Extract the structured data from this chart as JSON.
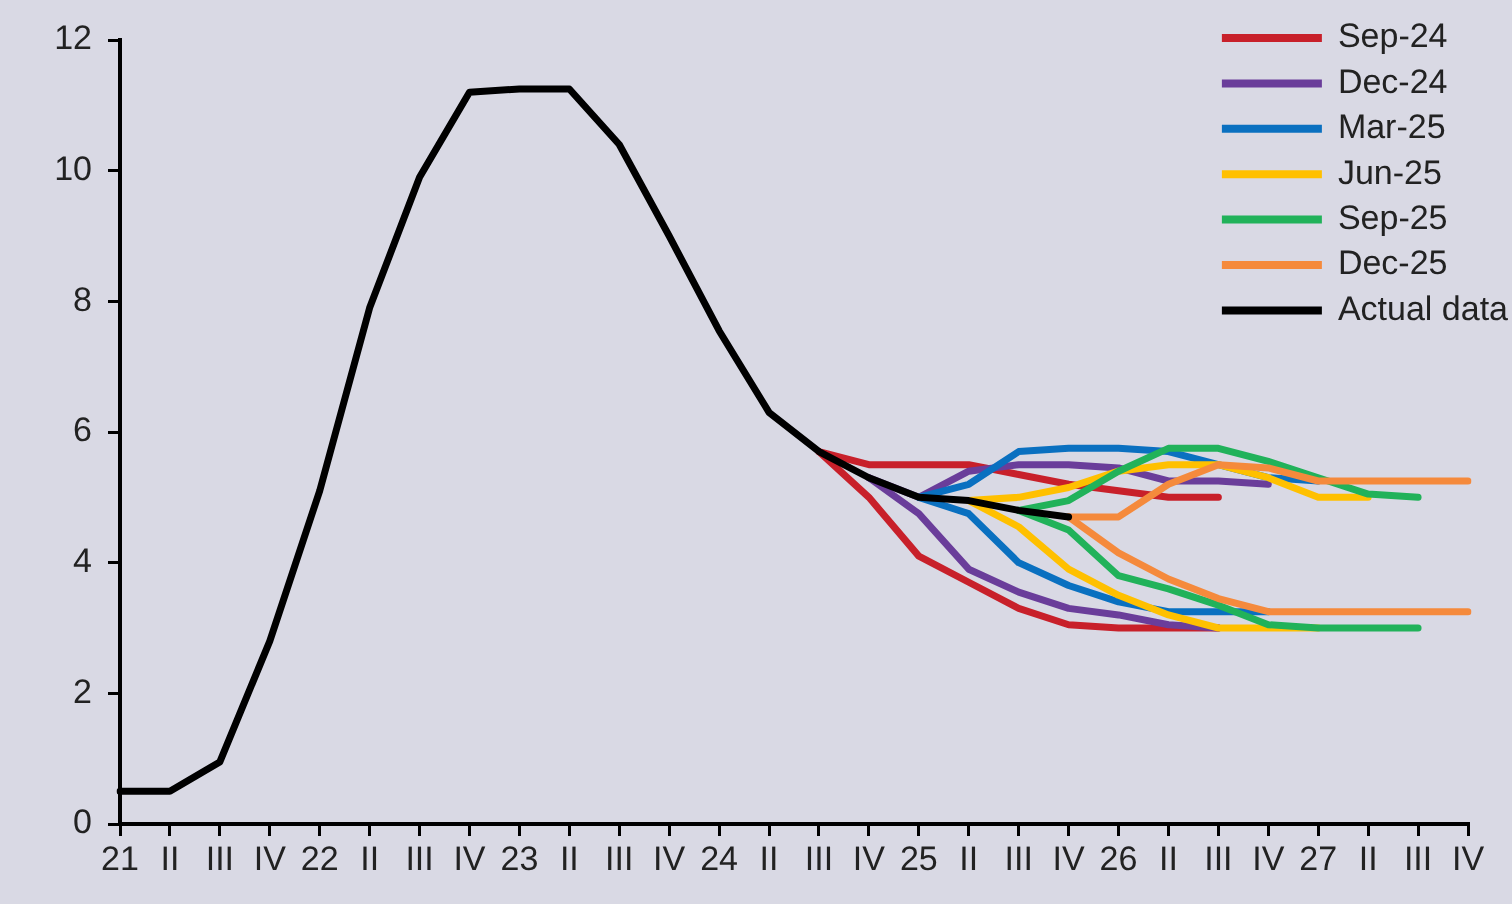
{
  "chart_data": {
    "type": "line",
    "legend": "top right",
    "categories": [
      "21",
      "II",
      "III",
      "IV",
      "22",
      "II",
      "III",
      "IV",
      "23",
      "II",
      "III",
      "IV",
      "24",
      "II",
      "III",
      "IV",
      "25",
      "II",
      "III",
      "IV",
      "26",
      "II",
      "III",
      "IV",
      "27",
      "II",
      "III",
      "IV"
    ],
    "ylim": [
      0,
      12
    ],
    "yticks": [
      0,
      2,
      4,
      6,
      8,
      10,
      12
    ],
    "series": [
      {
        "name": "Sep-24",
        "color": "#c8202a",
        "values": [
          null,
          null,
          null,
          null,
          null,
          null,
          null,
          null,
          null,
          null,
          null,
          null,
          null,
          null,
          5.7,
          5.5,
          5.5,
          5.5,
          5.35,
          5.2,
          5.1,
          5.0,
          5.0,
          null,
          null,
          null,
          null,
          null
        ]
      },
      {
        "color": "#c8202a",
        "values": [
          null,
          null,
          null,
          null,
          null,
          null,
          null,
          null,
          null,
          null,
          null,
          null,
          null,
          null,
          5.7,
          5.0,
          4.1,
          3.7,
          3.3,
          3.05,
          3.0,
          3.0,
          3.0,
          null,
          null,
          null,
          null,
          null
        ]
      },
      {
        "name": "Dec-24",
        "color": "#6a3d9a",
        "values": [
          null,
          null,
          null,
          null,
          null,
          null,
          null,
          null,
          null,
          null,
          null,
          null,
          null,
          null,
          null,
          5.3,
          5.0,
          5.4,
          5.5,
          5.5,
          5.45,
          5.25,
          5.25,
          5.2,
          null,
          null,
          null,
          null
        ]
      },
      {
        "color": "#6a3d9a",
        "values": [
          null,
          null,
          null,
          null,
          null,
          null,
          null,
          null,
          null,
          null,
          null,
          null,
          null,
          null,
          null,
          5.3,
          4.75,
          3.9,
          3.55,
          3.3,
          3.2,
          3.05,
          3.0,
          null,
          null,
          null,
          null,
          null
        ]
      },
      {
        "name": "Mar-25",
        "color": "#0a70c0",
        "values": [
          null,
          null,
          null,
          null,
          null,
          null,
          null,
          null,
          null,
          null,
          null,
          null,
          null,
          null,
          null,
          null,
          5.0,
          5.2,
          5.7,
          5.75,
          5.75,
          5.7,
          5.5,
          5.3,
          5.25,
          null,
          null,
          null
        ]
      },
      {
        "color": "#0a70c0",
        "values": [
          null,
          null,
          null,
          null,
          null,
          null,
          null,
          null,
          null,
          null,
          null,
          null,
          null,
          null,
          null,
          null,
          5.0,
          4.75,
          4.0,
          3.65,
          3.4,
          3.25,
          3.25,
          3.25,
          null,
          null,
          null,
          null
        ]
      },
      {
        "name": "Jun-25",
        "color": "#ffc000",
        "values": [
          null,
          null,
          null,
          null,
          null,
          null,
          null,
          null,
          null,
          null,
          null,
          null,
          null,
          null,
          null,
          null,
          null,
          4.95,
          5.0,
          5.15,
          5.4,
          5.5,
          5.5,
          5.3,
          5.0,
          5.0,
          null,
          null
        ]
      },
      {
        "color": "#ffc000",
        "values": [
          null,
          null,
          null,
          null,
          null,
          null,
          null,
          null,
          null,
          null,
          null,
          null,
          null,
          null,
          null,
          null,
          null,
          4.95,
          4.55,
          3.9,
          3.5,
          3.2,
          3.0,
          3.0,
          3.0,
          null,
          null,
          null
        ]
      },
      {
        "name": "Sep-25",
        "color": "#21b25a",
        "values": [
          null,
          null,
          null,
          null,
          null,
          null,
          null,
          null,
          null,
          null,
          null,
          null,
          null,
          null,
          null,
          null,
          null,
          null,
          4.8,
          4.95,
          5.4,
          5.75,
          5.75,
          5.55,
          5.3,
          5.05,
          5.0,
          null
        ]
      },
      {
        "color": "#21b25a",
        "values": [
          null,
          null,
          null,
          null,
          null,
          null,
          null,
          null,
          null,
          null,
          null,
          null,
          null,
          null,
          null,
          null,
          null,
          null,
          4.8,
          4.5,
          3.8,
          3.6,
          3.35,
          3.05,
          3.0,
          3.0,
          3.0,
          null
        ]
      },
      {
        "name": "Dec-25",
        "color": "#f58a3c",
        "values": [
          null,
          null,
          null,
          null,
          null,
          null,
          null,
          null,
          null,
          null,
          null,
          null,
          null,
          null,
          null,
          null,
          null,
          null,
          null,
          4.7,
          4.7,
          5.2,
          5.5,
          5.45,
          5.25,
          5.25,
          5.25,
          5.25
        ]
      },
      {
        "color": "#f58a3c",
        "values": [
          null,
          null,
          null,
          null,
          null,
          null,
          null,
          null,
          null,
          null,
          null,
          null,
          null,
          null,
          null,
          null,
          null,
          null,
          null,
          4.7,
          4.15,
          3.75,
          3.45,
          3.25,
          3.25,
          3.25,
          3.25,
          3.25
        ]
      },
      {
        "name": "Actual data",
        "color": "#000000",
        "values": [
          0.5,
          0.5,
          0.95,
          2.8,
          5.1,
          7.9,
          9.9,
          11.2,
          11.25,
          11.25,
          10.4,
          9.0,
          7.55,
          6.3,
          5.7,
          5.3,
          5.0,
          4.95,
          4.8,
          4.7,
          null,
          null,
          null,
          null,
          null,
          null,
          null,
          null
        ]
      }
    ]
  }
}
